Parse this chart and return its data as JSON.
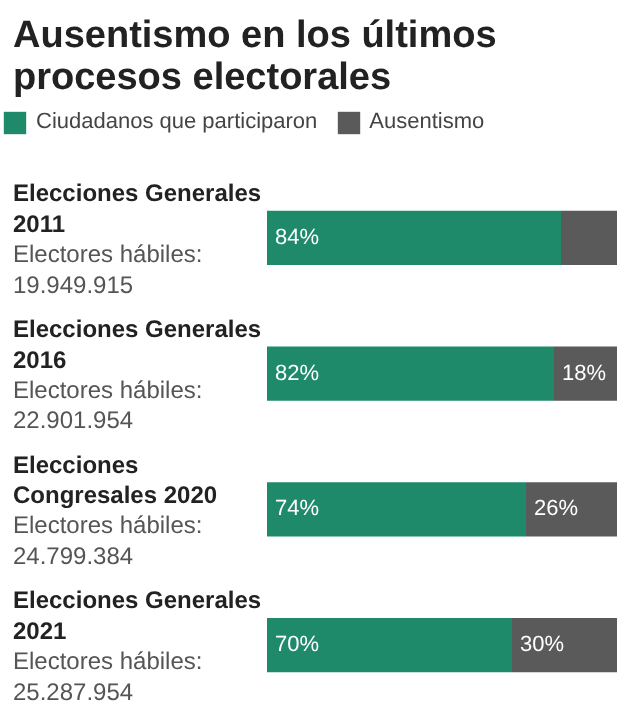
{
  "chart_data": {
    "type": "bar",
    "orientation": "horizontal",
    "stacked": true,
    "title": "Ausentismo en los últimos\nprocesos electorales",
    "categories": [
      "Elecciones Generales\n2011",
      "Elecciones Generales\n2016",
      "Elecciones\nCongresales 2020",
      "Elecciones Generales\n2021"
    ],
    "series": [
      {
        "name": "Ciudadanos que participaron",
        "color": "#1f8a6a",
        "values": [
          84,
          82,
          74,
          70
        ],
        "value_labels": [
          "84%",
          "82%",
          "74%",
          "70%"
        ]
      },
      {
        "name": "Ausentismo",
        "color": "#5a5a5a",
        "values": [
          16,
          18,
          26,
          30
        ],
        "value_labels": [
          null,
          "18%",
          "26%",
          "30%"
        ]
      }
    ],
    "annotations": [
      "Electores hábiles:\n19.949.915",
      "Electores hábiles:\n22.901.954",
      "Electores hábiles:\n24.799.384",
      "Electores hábiles:\n25.287.954"
    ],
    "legend": "top",
    "grid": false
  }
}
